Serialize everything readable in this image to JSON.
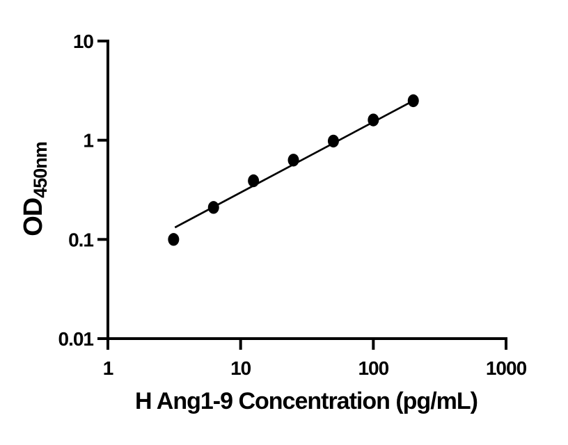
{
  "figure": {
    "background_color": "#ffffff",
    "foreground_color": "#000000"
  },
  "chart_data": {
    "type": "scatter",
    "title": "",
    "xlabel": "H Ang1-9 Concentration (pg/mL)",
    "ylabel_main": "OD",
    "ylabel_sub": "450nm",
    "x_scale": "log",
    "y_scale": "log",
    "xlim": [
      1,
      1000
    ],
    "ylim": [
      0.01,
      10
    ],
    "grid": false,
    "legend": false,
    "x_ticks": [
      {
        "value": 1,
        "label": "1"
      },
      {
        "value": 10,
        "label": "10"
      },
      {
        "value": 100,
        "label": "100"
      },
      {
        "value": 1000,
        "label": "1000"
      }
    ],
    "y_ticks": [
      {
        "value": 10,
        "label": "10"
      },
      {
        "value": 1,
        "label": "1"
      },
      {
        "value": 0.1,
        "label": "0.1"
      },
      {
        "value": 0.01,
        "label": "0.01"
      }
    ],
    "series": [
      {
        "name": "standard-curve",
        "points": [
          {
            "x": 3.125,
            "y": 0.1
          },
          {
            "x": 6.25,
            "y": 0.21
          },
          {
            "x": 12.5,
            "y": 0.39
          },
          {
            "x": 25,
            "y": 0.63
          },
          {
            "x": 50,
            "y": 0.98
          },
          {
            "x": 100,
            "y": 1.6
          },
          {
            "x": 200,
            "y": 2.5
          }
        ]
      }
    ],
    "trendline": {
      "x1": 3.2,
      "y1": 0.132,
      "x2": 200,
      "y2": 2.5
    },
    "marker_color": "#000000",
    "line_color": "#000000",
    "axis_color": "#000000"
  }
}
